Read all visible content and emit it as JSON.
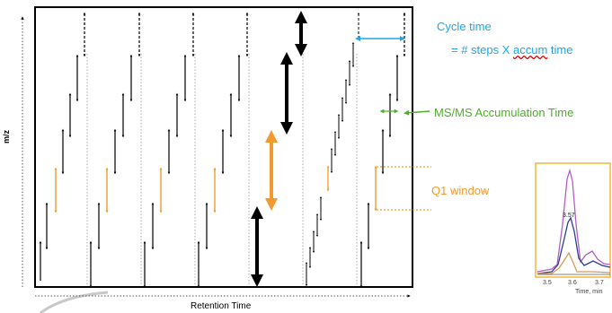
{
  "colors": {
    "black": "#000000",
    "orange": "#f29a2e",
    "cyan": "#1ea6e6",
    "green": "#4caf28",
    "purple": "#b05fc4",
    "navy": "#2c3e8f",
    "tan": "#d49a5a"
  },
  "axes": {
    "y_label": "m/z",
    "x_label": "Retention Time"
  },
  "annotations": {
    "cycle_time_title": "Cycle time",
    "cycle_time_prefix": "= # steps X ",
    "cycle_time_underlined": "accum",
    "cycle_time_suffix": " time",
    "ms_accum_label": "MS/MS Accumulation Time",
    "q1_window_label": "Q1 window"
  },
  "inset": {
    "peak_label": "3.57",
    "x_ticks": [
      "3.5",
      "3.6",
      "3.7"
    ],
    "x_unit": "Time, min"
  }
}
